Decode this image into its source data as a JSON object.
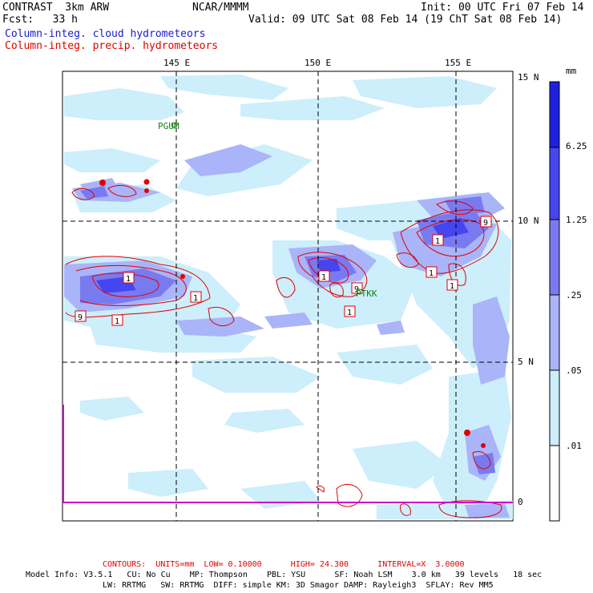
{
  "header": {
    "title": "CONTRAST  3km ARW",
    "org": "NCAR/MMMM",
    "init": "Init: 00 UTC Fri 07 Feb 14",
    "fcst": "Fcst:   33 h",
    "valid": "Valid: 09 UTC Sat 08 Feb 14 (19 ChT Sat 08 Feb 14)",
    "field_blue": "Column-integ. cloud hydrometeors",
    "field_red": "Column-integ. precip. hydrometeors"
  },
  "map": {
    "lon_labels": [
      "145 E",
      "150 E",
      "155 E"
    ],
    "lat_labels": [
      "15 N",
      "10 N",
      "5 N",
      "0"
    ],
    "stations": [
      "PGUM",
      "PTKK"
    ]
  },
  "colorbar": {
    "unit": "mm",
    "levels": [
      "6.25",
      "1.25",
      ".25",
      ".05",
      ".01"
    ],
    "colors": {
      "c1": "#2020e0",
      "c2": "#4646f0",
      "c3": "#7a7af0",
      "c4": "#aab4f8",
      "c5": "#cdeefb",
      "c6": "#ffffff"
    }
  },
  "contour_labels": [
    "1",
    "9",
    "1",
    "1",
    "1",
    "9",
    "1",
    "1",
    "1",
    "1",
    "9"
  ],
  "footer": {
    "contours": "CONTOURS:  UNITS=mm  LOW= 0.10000      HIGH= 24.300      INTERVAL=X  3.0000",
    "model1": "Model Info: V3.5.1   CU: No Cu    MP: Thompson    PBL: YSU      SF: Noah LSM    3.0 km   39 levels   18 sec",
    "model2": "LW: RRTMG   SW: RRTMG  DIFF: simple KM: 3D Smagor DAMP: Rayleigh3  SFLAY: Rev MM5"
  }
}
